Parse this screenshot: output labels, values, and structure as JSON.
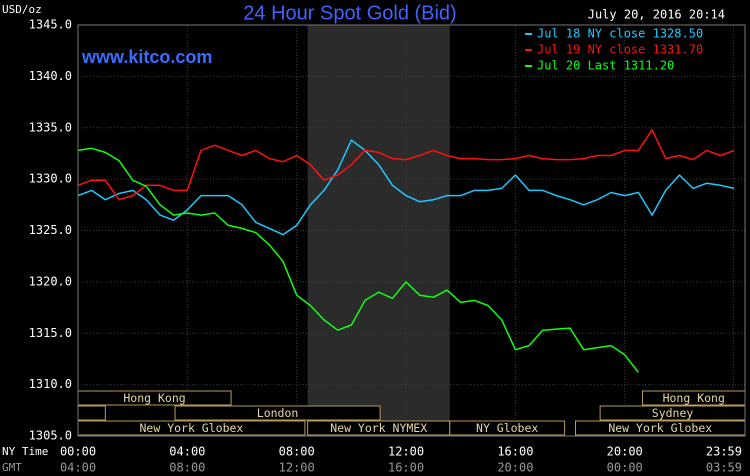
{
  "chart_data": {
    "type": "line",
    "title": "24 Hour Spot Gold (Bid)",
    "timestamp": "July 20, 2016 20:14",
    "watermark": "www.kitco.com",
    "ylabel": "USD/oz",
    "x_row_label": "NY Time",
    "x2_row_label": "GMT",
    "x": [
      0,
      0.5,
      1,
      1.5,
      2,
      2.5,
      3,
      3.5,
      4,
      4.5,
      5,
      5.5,
      6,
      6.5,
      7,
      7.5,
      8,
      8.5,
      9,
      9.5,
      10,
      10.5,
      11,
      11.5,
      12,
      12.5,
      13,
      13.5,
      14,
      14.5,
      15,
      15.5,
      16,
      16.5,
      17,
      17.5,
      18,
      18.5,
      19,
      19.5,
      20,
      20.5,
      21,
      21.5,
      22,
      22.5,
      23,
      23.5,
      24
    ],
    "series": [
      {
        "name": "Jul 18 NY close 1328.50",
        "color": "#1ec8ff",
        "values": [
          1328.4,
          1328.9,
          1328.0,
          1328.6,
          1328.9,
          1328.0,
          1326.5,
          1326.0,
          1327.0,
          1328.4,
          1328.4,
          1328.4,
          1327.5,
          1325.8,
          1325.2,
          1324.6,
          1325.5,
          1327.5,
          1328.9,
          1330.9,
          1333.8,
          1332.8,
          1331.4,
          1329.4,
          1328.4,
          1327.8,
          1328.0,
          1328.4,
          1328.4,
          1328.9,
          1328.9,
          1329.1,
          1330.4,
          1328.9,
          1328.9,
          1328.4,
          1328.0,
          1327.5,
          1328.0,
          1328.7,
          1328.4,
          1328.7,
          1326.5,
          1328.9,
          1330.4,
          1329.1,
          1329.6,
          1329.4,
          1329.1
        ]
      },
      {
        "name": "Jul 19 NY close 1331.70",
        "color": "#ff1010",
        "values": [
          1329.4,
          1329.9,
          1329.9,
          1328.0,
          1328.4,
          1329.4,
          1329.4,
          1328.9,
          1328.9,
          1332.8,
          1333.3,
          1332.8,
          1332.3,
          1332.8,
          1332.0,
          1331.7,
          1332.3,
          1331.4,
          1329.9,
          1330.4,
          1331.4,
          1332.8,
          1332.6,
          1332.0,
          1331.9,
          1332.3,
          1332.8,
          1332.3,
          1332.0,
          1332.0,
          1331.9,
          1331.9,
          1332.0,
          1332.3,
          1332.0,
          1331.9,
          1331.9,
          1332.0,
          1332.3,
          1332.3,
          1332.8,
          1332.8,
          1334.8,
          1332.0,
          1332.3,
          1331.9,
          1332.8,
          1332.3,
          1332.8
        ]
      },
      {
        "name": "Jul 20 Last 1311.20",
        "color": "#10ff10",
        "values": [
          1332.8,
          1333.0,
          1332.6,
          1331.8,
          1329.9,
          1329.3,
          1327.5,
          1326.5,
          1326.7,
          1326.5,
          1326.7,
          1325.5,
          1325.2,
          1324.8,
          1323.6,
          1322.0,
          1318.7,
          1317.7,
          1316.3,
          1315.3,
          1315.8,
          1318.2,
          1319.0,
          1318.4,
          1320.0,
          1318.7,
          1318.5,
          1319.2,
          1318.0,
          1318.2,
          1317.7,
          1316.3,
          1313.4,
          1313.8,
          1315.3,
          1315.4,
          1315.5,
          1313.4,
          1313.6,
          1313.8,
          1312.9,
          1311.2,
          null,
          null,
          null,
          null,
          null,
          null,
          null
        ]
      }
    ],
    "xlim": [
      0,
      24.4
    ],
    "xticks": [
      {
        "value": 0,
        "label": "00:00"
      },
      {
        "value": 4,
        "label": "04:00"
      },
      {
        "value": 8,
        "label": "08:00"
      },
      {
        "value": 12,
        "label": "12:00"
      },
      {
        "value": 16,
        "label": "16:00"
      },
      {
        "value": 20,
        "label": "20:00"
      },
      {
        "value": 23.98,
        "label": "23:59"
      }
    ],
    "x2_labels": [
      "04:00",
      "08:00",
      "12:00",
      "16:00",
      "20:00",
      "00:00",
      "03:59"
    ],
    "ylim": [
      1305,
      1345
    ],
    "yticks": [
      {
        "value": 1305,
        "label": "1305.0"
      },
      {
        "value": 1310,
        "label": "1310.0"
      },
      {
        "value": 1315,
        "label": "1315.0"
      },
      {
        "value": 1320,
        "label": "1320.0"
      },
      {
        "value": 1325,
        "label": "1325.0"
      },
      {
        "value": 1330,
        "label": "1330.0"
      },
      {
        "value": 1335,
        "label": "1335.0"
      },
      {
        "value": 1340,
        "label": "1340.0"
      },
      {
        "value": 1345,
        "label": "1345.0"
      }
    ],
    "grid": true,
    "highlight": {
      "start": 8.4,
      "end": 13.6
    },
    "session_rows": [
      [
        {
          "label": "Hong Kong",
          "start": 0,
          "end": 5.6
        },
        {
          "label": "Hong Kong",
          "start": 20.65,
          "end": 24.4
        }
      ],
      [
        {
          "label": null,
          "start": 0,
          "end": 1.0
        },
        {
          "label": "London",
          "start": 3.55,
          "end": 11.05
        },
        {
          "label": "Sydney",
          "start": 19.1,
          "end": 24.4
        }
      ],
      [
        {
          "label": "New York Globex",
          "start": 0,
          "end": 8.3
        },
        {
          "label": "New York NYMEX",
          "start": 8.4,
          "end": 13.6
        },
        {
          "label": "NY Globex",
          "start": 13.6,
          "end": 17.8
        },
        {
          "label": "New York Globex",
          "start": 18.2,
          "end": 24.4
        }
      ]
    ]
  }
}
